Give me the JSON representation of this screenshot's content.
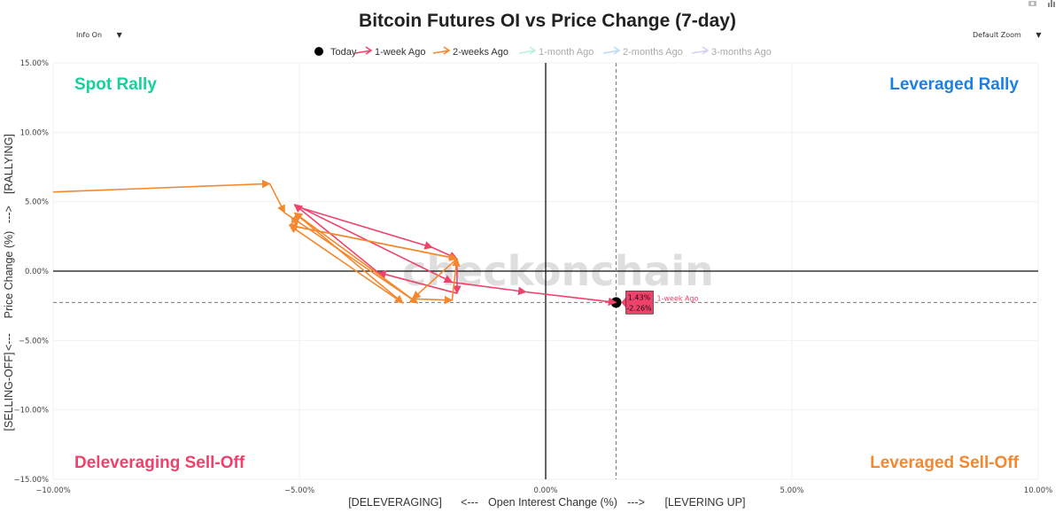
{
  "controls": {
    "info_label": "Info On",
    "zoom_label": "Default Zoom",
    "caret": "▼"
  },
  "toolbar_icons": [
    "camera-icon",
    "bar-chart-icon"
  ],
  "chart_data": {
    "type": "scatter",
    "title": "Bitcoin Futures OI vs Price Change (7-day)",
    "watermark": "checkonchain",
    "xlabel": {
      "left": "[DELEVERAGING]",
      "left_arrow": "<---",
      "center": "Open Interest Change (%)",
      "right_arrow": "--->",
      "right": "[LEVERING UP]"
    },
    "ylabel": {
      "bottom": "[SELLING-OFF]",
      "bottom_arrow": "<---",
      "center": "Price Change (%)",
      "top_arrow": "--->",
      "top": "[RALLYING]"
    },
    "xlim": [
      -10,
      10
    ],
    "ylim": [
      -15,
      15
    ],
    "xticks": [
      -10,
      -5,
      0,
      5,
      10
    ],
    "xtick_labels": [
      "−10.00%",
      "−5.00%",
      "0.00%",
      "5.00%",
      "10.00%"
    ],
    "yticks": [
      -15,
      -10,
      -5,
      0,
      5,
      10,
      15
    ],
    "ytick_labels": [
      "−15.00%",
      "−10.00%",
      "−5.00%",
      "0.00%",
      "5.00%",
      "10.00%",
      "15.00%"
    ],
    "grid": true,
    "legend_position": "top-center",
    "quadrants": [
      {
        "label": "Spot Rally",
        "position": "top-left",
        "color": "#12d39a"
      },
      {
        "label": "Leveraged Rally",
        "position": "top-right",
        "color": "#1a7fe6"
      },
      {
        "label": "Deleveraging Sell-Off",
        "position": "bottom-left",
        "color": "#f0416b"
      },
      {
        "label": "Leveraged Sell-Off",
        "position": "bottom-right",
        "color": "#f5872d"
      }
    ],
    "series": [
      {
        "name": "Today",
        "color": "#000000",
        "marker": "circle",
        "visible": true,
        "points": [
          [
            1.43,
            -2.26
          ]
        ]
      },
      {
        "name": "1-week Ago",
        "color": "#f0416b",
        "marker": "arrow",
        "visible": true,
        "points": [
          [
            -5.1,
            4.7
          ],
          [
            -2.3,
            1.7
          ],
          [
            -1.8,
            0.9
          ],
          [
            -1.8,
            -1.6
          ],
          [
            -3.4,
            -0.1
          ],
          [
            -5.1,
            4.8
          ],
          [
            -1.9,
            -0.8
          ],
          [
            -0.4,
            -1.5
          ],
          [
            1.43,
            -2.26
          ]
        ]
      },
      {
        "name": "2-weeks Ago",
        "color": "#f5872d",
        "marker": "arrow",
        "visible": true,
        "points": [
          [
            -10.0,
            5.7
          ],
          [
            -5.6,
            6.3
          ],
          [
            -5.3,
            4.2
          ],
          [
            -5.0,
            3.5
          ],
          [
            -2.6,
            -2.3
          ],
          [
            -5.1,
            4.2
          ],
          [
            -2.9,
            -2.3
          ],
          [
            -5.2,
            3.3
          ],
          [
            -1.8,
            0.9
          ],
          [
            -2.7,
            -2.0
          ],
          [
            -1.9,
            -2.1
          ],
          [
            -1.8,
            0.9
          ],
          [
            -5.2,
            3.3
          ],
          [
            -5.0,
            3.9
          ]
        ]
      },
      {
        "name": "1-month Ago",
        "color": "#7de8c3",
        "marker": "arrow",
        "visible": false,
        "points": []
      },
      {
        "name": "2-months Ago",
        "color": "#8bb8f0",
        "marker": "arrow",
        "visible": false,
        "points": []
      },
      {
        "name": "3-months Ago",
        "color": "#b6a8ef",
        "marker": "arrow",
        "visible": false,
        "points": []
      }
    ],
    "reference_lines": {
      "x": 1.43,
      "y": -2.26,
      "style": "dashed"
    },
    "annotation": {
      "series": "1-week Ago",
      "x_text": "1.43%",
      "y_text": "-2.26%",
      "label": "1-week Ago",
      "color": "#f0416b"
    }
  }
}
